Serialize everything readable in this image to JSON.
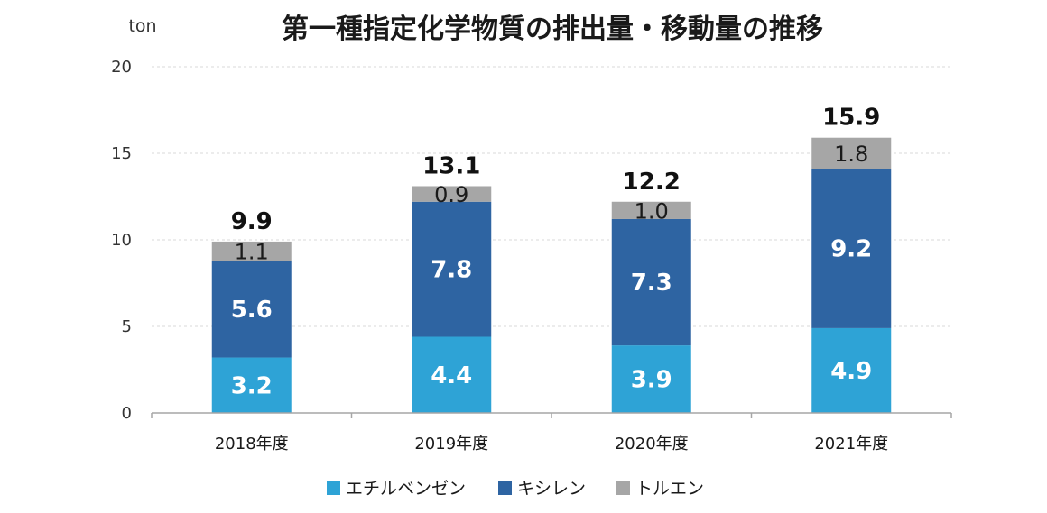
{
  "chart_data": {
    "type": "bar",
    "stacked": true,
    "title": "第一種指定化学物質の排出量・移動量の推移",
    "unit_label": "ton",
    "categories": [
      "2018年度",
      "2019年度",
      "2020年度",
      "2021年度"
    ],
    "series": [
      {
        "name": "エチルベンゼン",
        "values": [
          3.2,
          4.4,
          3.9,
          4.9
        ],
        "color": "#2EA3D6",
        "label_style": "light"
      },
      {
        "name": "キシレン",
        "values": [
          5.6,
          7.8,
          7.3,
          9.2
        ],
        "color": "#2E64A2",
        "label_style": "light"
      },
      {
        "name": "トルエン",
        "values": [
          1.1,
          0.9,
          1.0,
          1.8
        ],
        "color": "#A6A6A6",
        "label_style": "dark"
      }
    ],
    "segment_labels": [
      [
        "3.2",
        "4.4",
        "3.9",
        "4.9"
      ],
      [
        "5.6",
        "7.8",
        "7.3",
        "9.2"
      ],
      [
        "1.1",
        "0.9",
        "1.0",
        "1.8"
      ]
    ],
    "totals": [
      "9.9",
      "13.1",
      "12.2",
      "15.9"
    ],
    "ylim": [
      0,
      20
    ],
    "yticks": [
      0,
      5,
      10,
      15,
      20
    ],
    "grid": true,
    "legend_position": "bottom"
  }
}
